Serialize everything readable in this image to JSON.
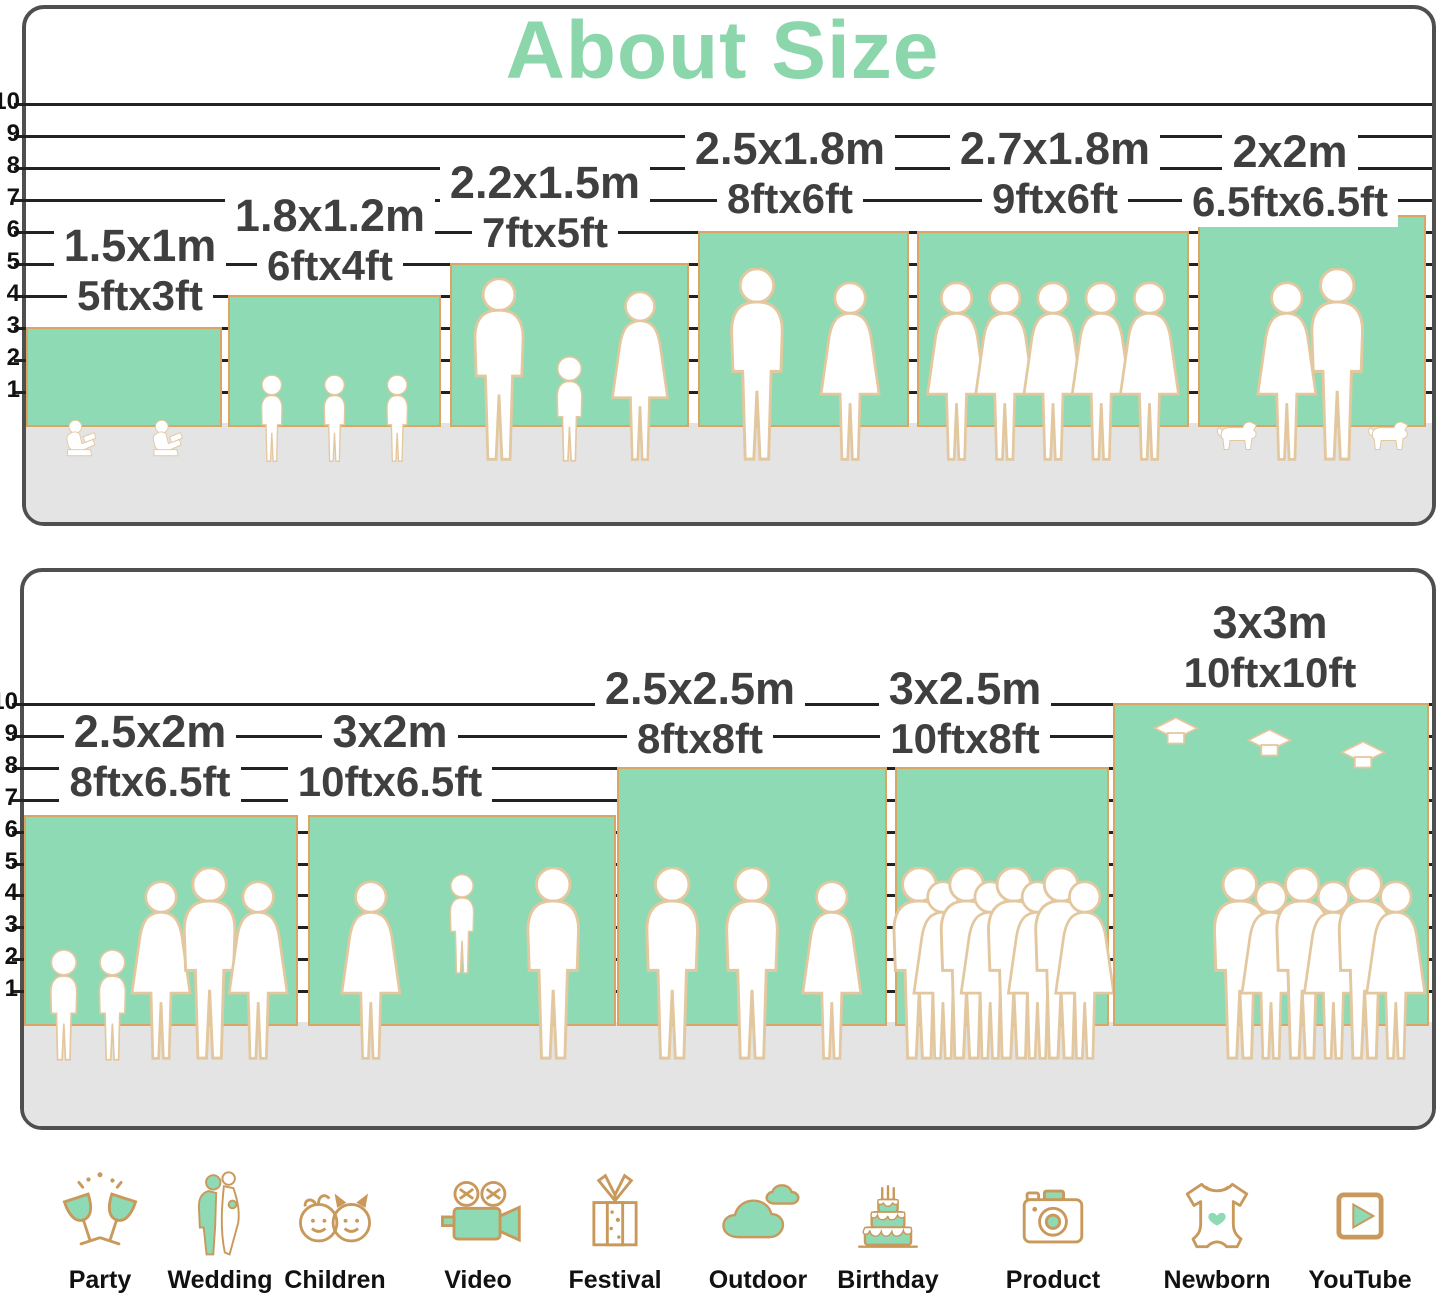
{
  "title": "About Size",
  "colors": {
    "accent": "#8cd6ac",
    "backdrop_fill": "#8edab4",
    "backdrop_border": "#d9a763",
    "floor": "#e4e4e4",
    "panel_border": "#4f4f4f",
    "label_text": "#3f3f3f",
    "icon_line": "#c9995c"
  },
  "axis": {
    "ticks": [
      "10",
      "9",
      "8",
      "7",
      "6",
      "5",
      "4",
      "3",
      "2",
      "1"
    ]
  },
  "panels": [
    {
      "items": [
        {
          "metric": "1.5x1m",
          "imperial": "5ftx3ft",
          "width_ft": 5,
          "height_ft": 3,
          "figures": [
            "sit",
            "sit"
          ]
        },
        {
          "metric": "1.8x1.2m",
          "imperial": "6ftx4ft",
          "width_ft": 6,
          "height_ft": 4,
          "figures": [
            "child",
            "child",
            "child"
          ]
        },
        {
          "metric": "2.2x1.5m",
          "imperial": "7ftx5ft",
          "width_ft": 7,
          "height_ft": 5,
          "figures": [
            "man",
            "child",
            "woman"
          ]
        },
        {
          "metric": "2.5x1.8m",
          "imperial": "8ftx6ft",
          "width_ft": 8,
          "height_ft": 6,
          "figures": [
            "man",
            "woman"
          ]
        },
        {
          "metric": "2.7x1.8m",
          "imperial": "9ftx6ft",
          "width_ft": 9,
          "height_ft": 6,
          "figures": [
            "woman",
            "woman",
            "woman",
            "woman",
            "woman"
          ]
        },
        {
          "metric": "2x2m",
          "imperial": "6.5ftx6.5ft",
          "width_ft": 6.5,
          "height_ft": 6.5,
          "figures": [
            "dog",
            "woman",
            "man",
            "dog"
          ]
        }
      ]
    },
    {
      "items": [
        {
          "metric": "2.5x2m",
          "imperial": "8ftx6.5ft",
          "width_ft": 8,
          "height_ft": 6.5,
          "figures": [
            "child",
            "child",
            "woman",
            "man",
            "woman"
          ]
        },
        {
          "metric": "3x2m",
          "imperial": "10ftx6.5ft",
          "width_ft": 10,
          "height_ft": 6.5,
          "figures": [
            "woman",
            "toss",
            "man"
          ]
        },
        {
          "metric": "2.5x2.5m",
          "imperial": "8ftx8ft",
          "width_ft": 8,
          "height_ft": 8,
          "figures": [
            "man",
            "man",
            "woman"
          ]
        },
        {
          "metric": "3x2.5m",
          "imperial": "10ftx8ft",
          "width_ft": 10,
          "height_ft": 8,
          "figures": [
            "man",
            "woman",
            "man",
            "woman",
            "man",
            "woman",
            "man",
            "woman"
          ]
        },
        {
          "metric": "3x3m",
          "imperial": "10ftx10ft",
          "width_ft": 10,
          "height_ft": 10,
          "figures": [
            "cap",
            "cap",
            "cap",
            "man",
            "woman",
            "man",
            "woman",
            "man",
            "woman"
          ]
        }
      ]
    }
  ],
  "categories": [
    {
      "label": "Party",
      "icon": "party-glasses-icon"
    },
    {
      "label": "Wedding",
      "icon": "wedding-couple-icon"
    },
    {
      "label": "Children",
      "icon": "children-faces-icon"
    },
    {
      "label": "Video",
      "icon": "video-camera-icon"
    },
    {
      "label": "Festival",
      "icon": "gift-box-icon"
    },
    {
      "label": "Outdoor",
      "icon": "clouds-icon"
    },
    {
      "label": "Birthday",
      "icon": "birthday-cake-icon"
    },
    {
      "label": "Product",
      "icon": "camera-icon"
    },
    {
      "label": "Newborn",
      "icon": "baby-onesie-icon"
    },
    {
      "label": "YouTube",
      "icon": "play-button-icon"
    }
  ]
}
